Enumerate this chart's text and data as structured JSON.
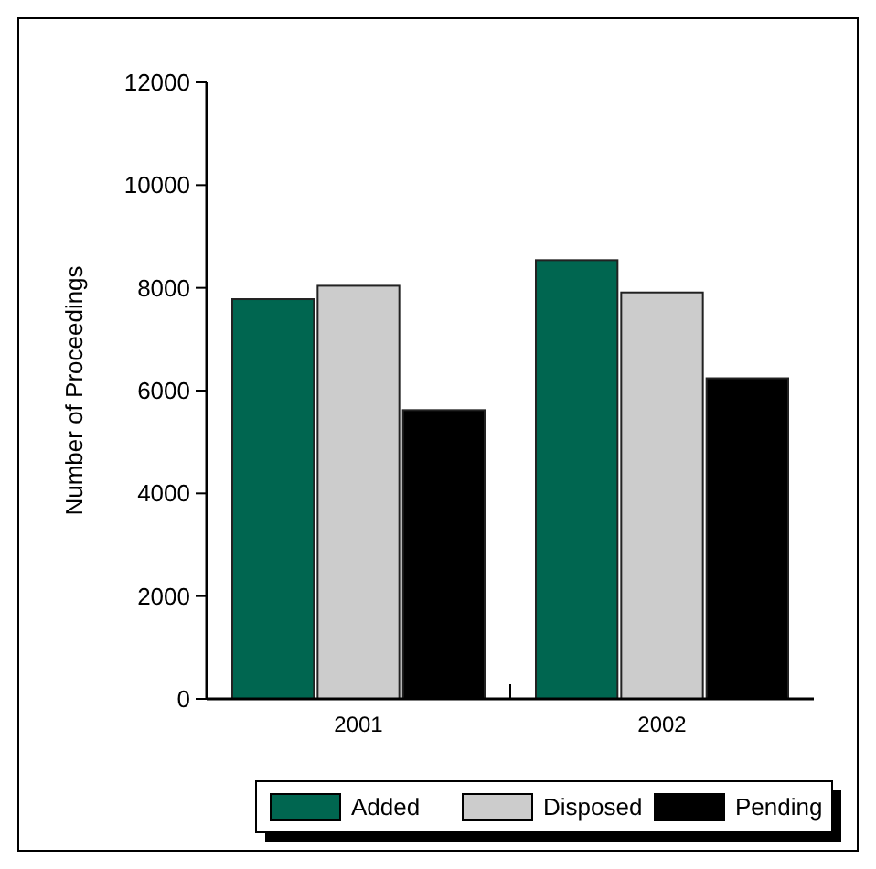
{
  "chart_data": {
    "type": "bar",
    "ylabel": "Number of Proceedings",
    "categories": [
      "2001",
      "2002"
    ],
    "series": [
      {
        "name": "Added",
        "color": "#006650",
        "values": [
          7780,
          8540
        ]
      },
      {
        "name": "Disposed",
        "color": "#cccccc",
        "values": [
          8040,
          7910
        ]
      },
      {
        "name": "Pending",
        "color": "#000000",
        "values": [
          5620,
          6240
        ]
      }
    ],
    "ylim": [
      0,
      12000
    ],
    "yticks": [
      0,
      2000,
      4000,
      6000,
      8000,
      10000,
      12000
    ],
    "legend": "bottom"
  }
}
